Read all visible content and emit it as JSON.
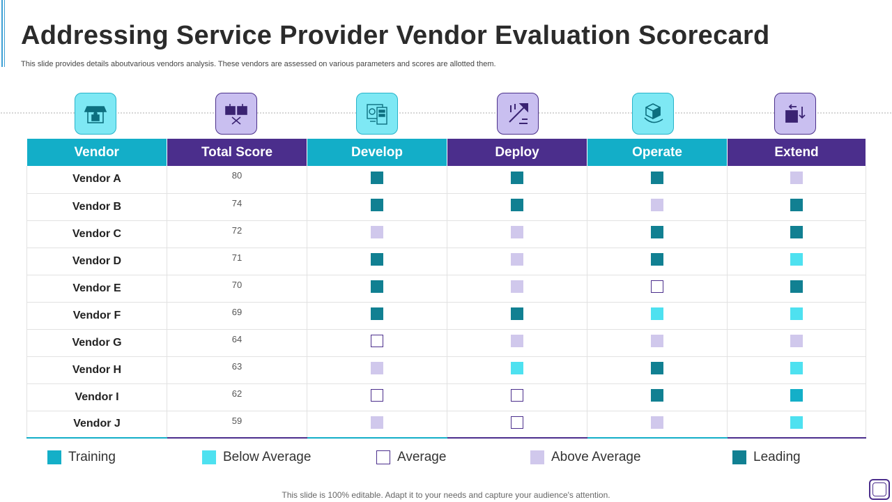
{
  "header": {
    "title": "Addressing Service Provider Vendor Evaluation Scorecard",
    "subtitle": "This slide provides details aboutvarious vendors analysis. These vendors are assessed on various parameters and scores are allotted them."
  },
  "icons": [
    {
      "name": "store-icon",
      "style": "cyan"
    },
    {
      "name": "scoreboard-icon",
      "style": "purple"
    },
    {
      "name": "develop-devices-icon",
      "style": "cyan"
    },
    {
      "name": "deploy-arrows-icon",
      "style": "purple"
    },
    {
      "name": "operate-cube-icon",
      "style": "cyan"
    },
    {
      "name": "extend-arrow-icon",
      "style": "purple"
    }
  ],
  "table": {
    "headers": [
      "Vendor",
      "Total Score",
      "Develop",
      "Deploy",
      "Operate",
      "Extend"
    ],
    "rows": [
      {
        "vendor": "Vendor A",
        "score": "80",
        "ratings": [
          "leading",
          "leading",
          "leading",
          "above"
        ]
      },
      {
        "vendor": "Vendor B",
        "score": "74",
        "ratings": [
          "leading",
          "leading",
          "above",
          "leading"
        ]
      },
      {
        "vendor": "Vendor C",
        "score": "72",
        "ratings": [
          "above",
          "above",
          "leading",
          "leading"
        ]
      },
      {
        "vendor": "Vendor D",
        "score": "71",
        "ratings": [
          "leading",
          "above",
          "leading",
          "below"
        ]
      },
      {
        "vendor": "Vendor E",
        "score": "70",
        "ratings": [
          "leading",
          "above",
          "average",
          "leading"
        ]
      },
      {
        "vendor": "Vendor F",
        "score": "69",
        "ratings": [
          "leading",
          "leading",
          "below",
          "below"
        ]
      },
      {
        "vendor": "Vendor G",
        "score": "64",
        "ratings": [
          "average",
          "above",
          "above",
          "above"
        ]
      },
      {
        "vendor": "Vendor H",
        "score": "63",
        "ratings": [
          "above",
          "below",
          "leading",
          "below"
        ]
      },
      {
        "vendor": "Vendor I",
        "score": "62",
        "ratings": [
          "average",
          "average",
          "leading",
          "training"
        ]
      },
      {
        "vendor": "Vendor J",
        "score": "59",
        "ratings": [
          "above",
          "average",
          "above",
          "below"
        ]
      }
    ]
  },
  "legend": [
    {
      "key": "training",
      "label": "Training"
    },
    {
      "key": "below",
      "label": "Below Average"
    },
    {
      "key": "average",
      "label": "Average"
    },
    {
      "key": "above",
      "label": "Above Average"
    },
    {
      "key": "leading",
      "label": "Leading"
    }
  ],
  "colors": {
    "cyan": "#13aec8",
    "purple": "#4b2e8c",
    "leading": "#118092",
    "above_average": "#d0c8ec",
    "below_average": "#4ee1f0",
    "training": "#14afc8"
  },
  "footer": {
    "text": "This slide is 100% editable. Adapt it to your needs and capture your audience's attention."
  }
}
